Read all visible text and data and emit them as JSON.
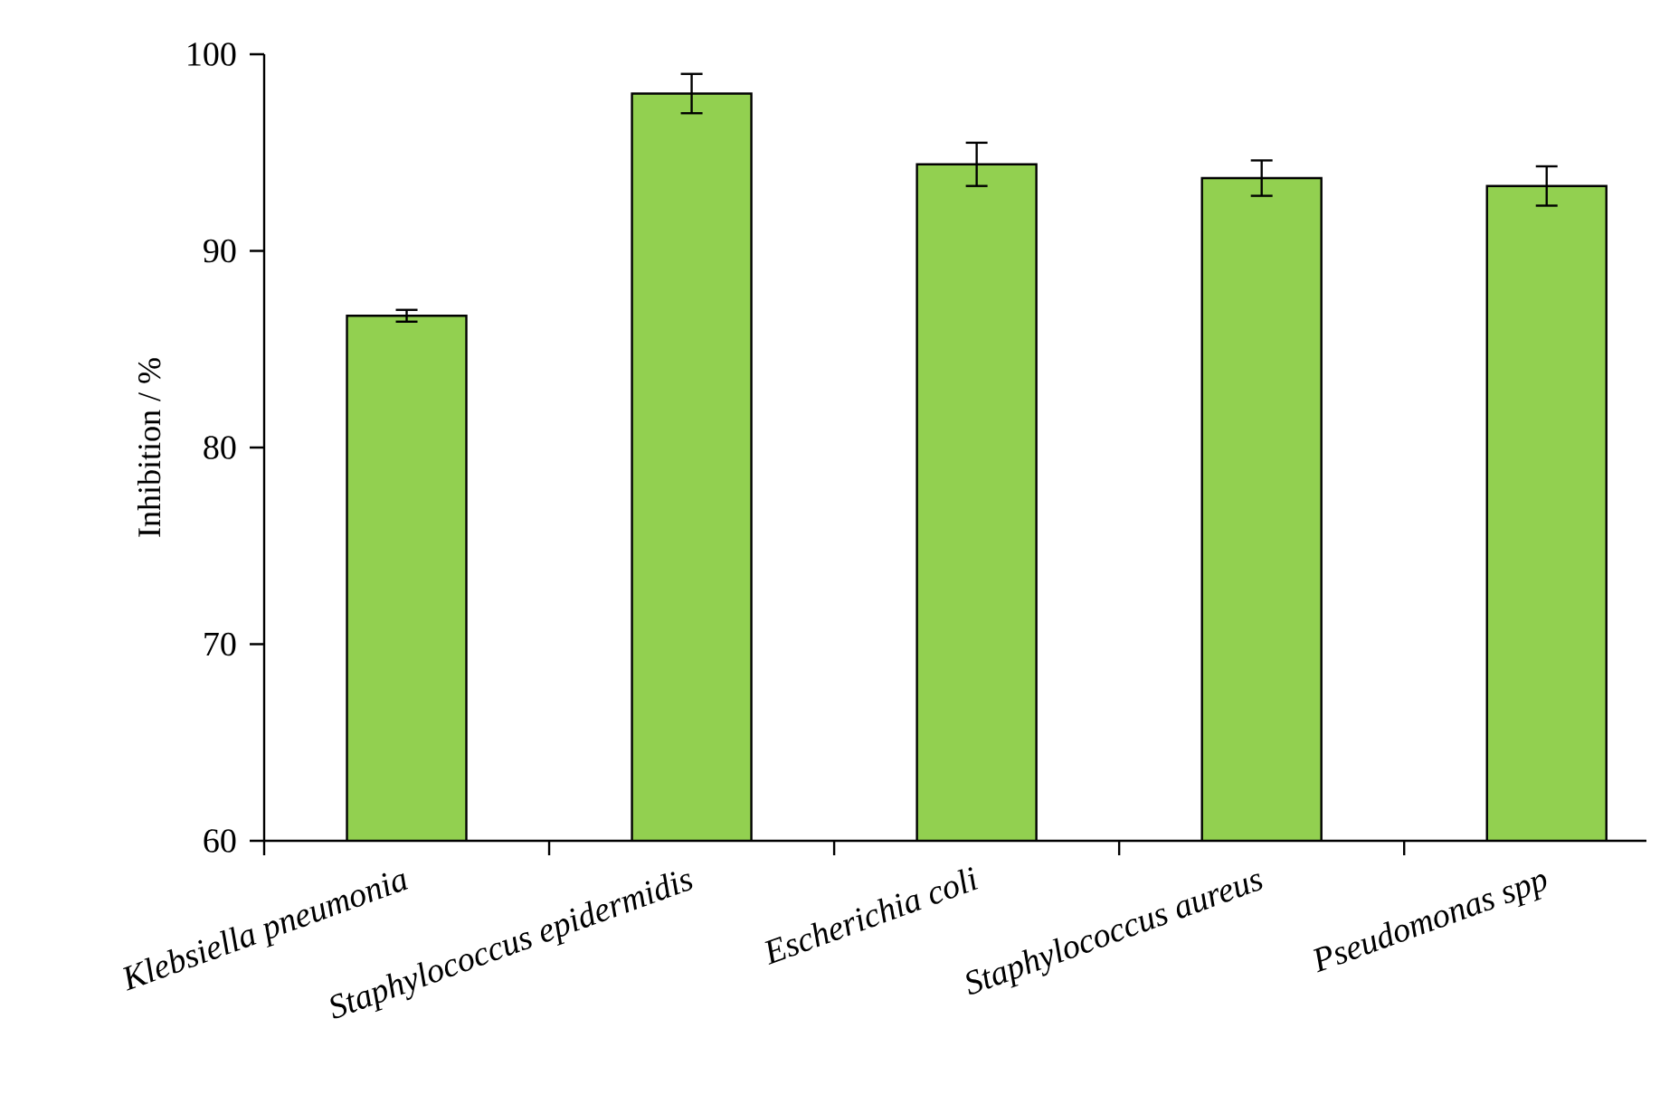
{
  "chart_data": {
    "type": "bar",
    "ylabel": "Inhibition  / %",
    "categories": [
      "Klebsiella pneumonia",
      "Staphylococcus epidermidis",
      "Escherichia coli",
      "Staphylococcus aureus",
      "Pseudomonas spp"
    ],
    "values": [
      86.7,
      98.0,
      94.4,
      93.7,
      93.3
    ],
    "errors": [
      0.3,
      1.0,
      1.1,
      0.9,
      1.0
    ],
    "color": "#92d050",
    "ylim": [
      60,
      100
    ],
    "yticks": [
      60,
      70,
      80,
      90,
      100
    ]
  }
}
